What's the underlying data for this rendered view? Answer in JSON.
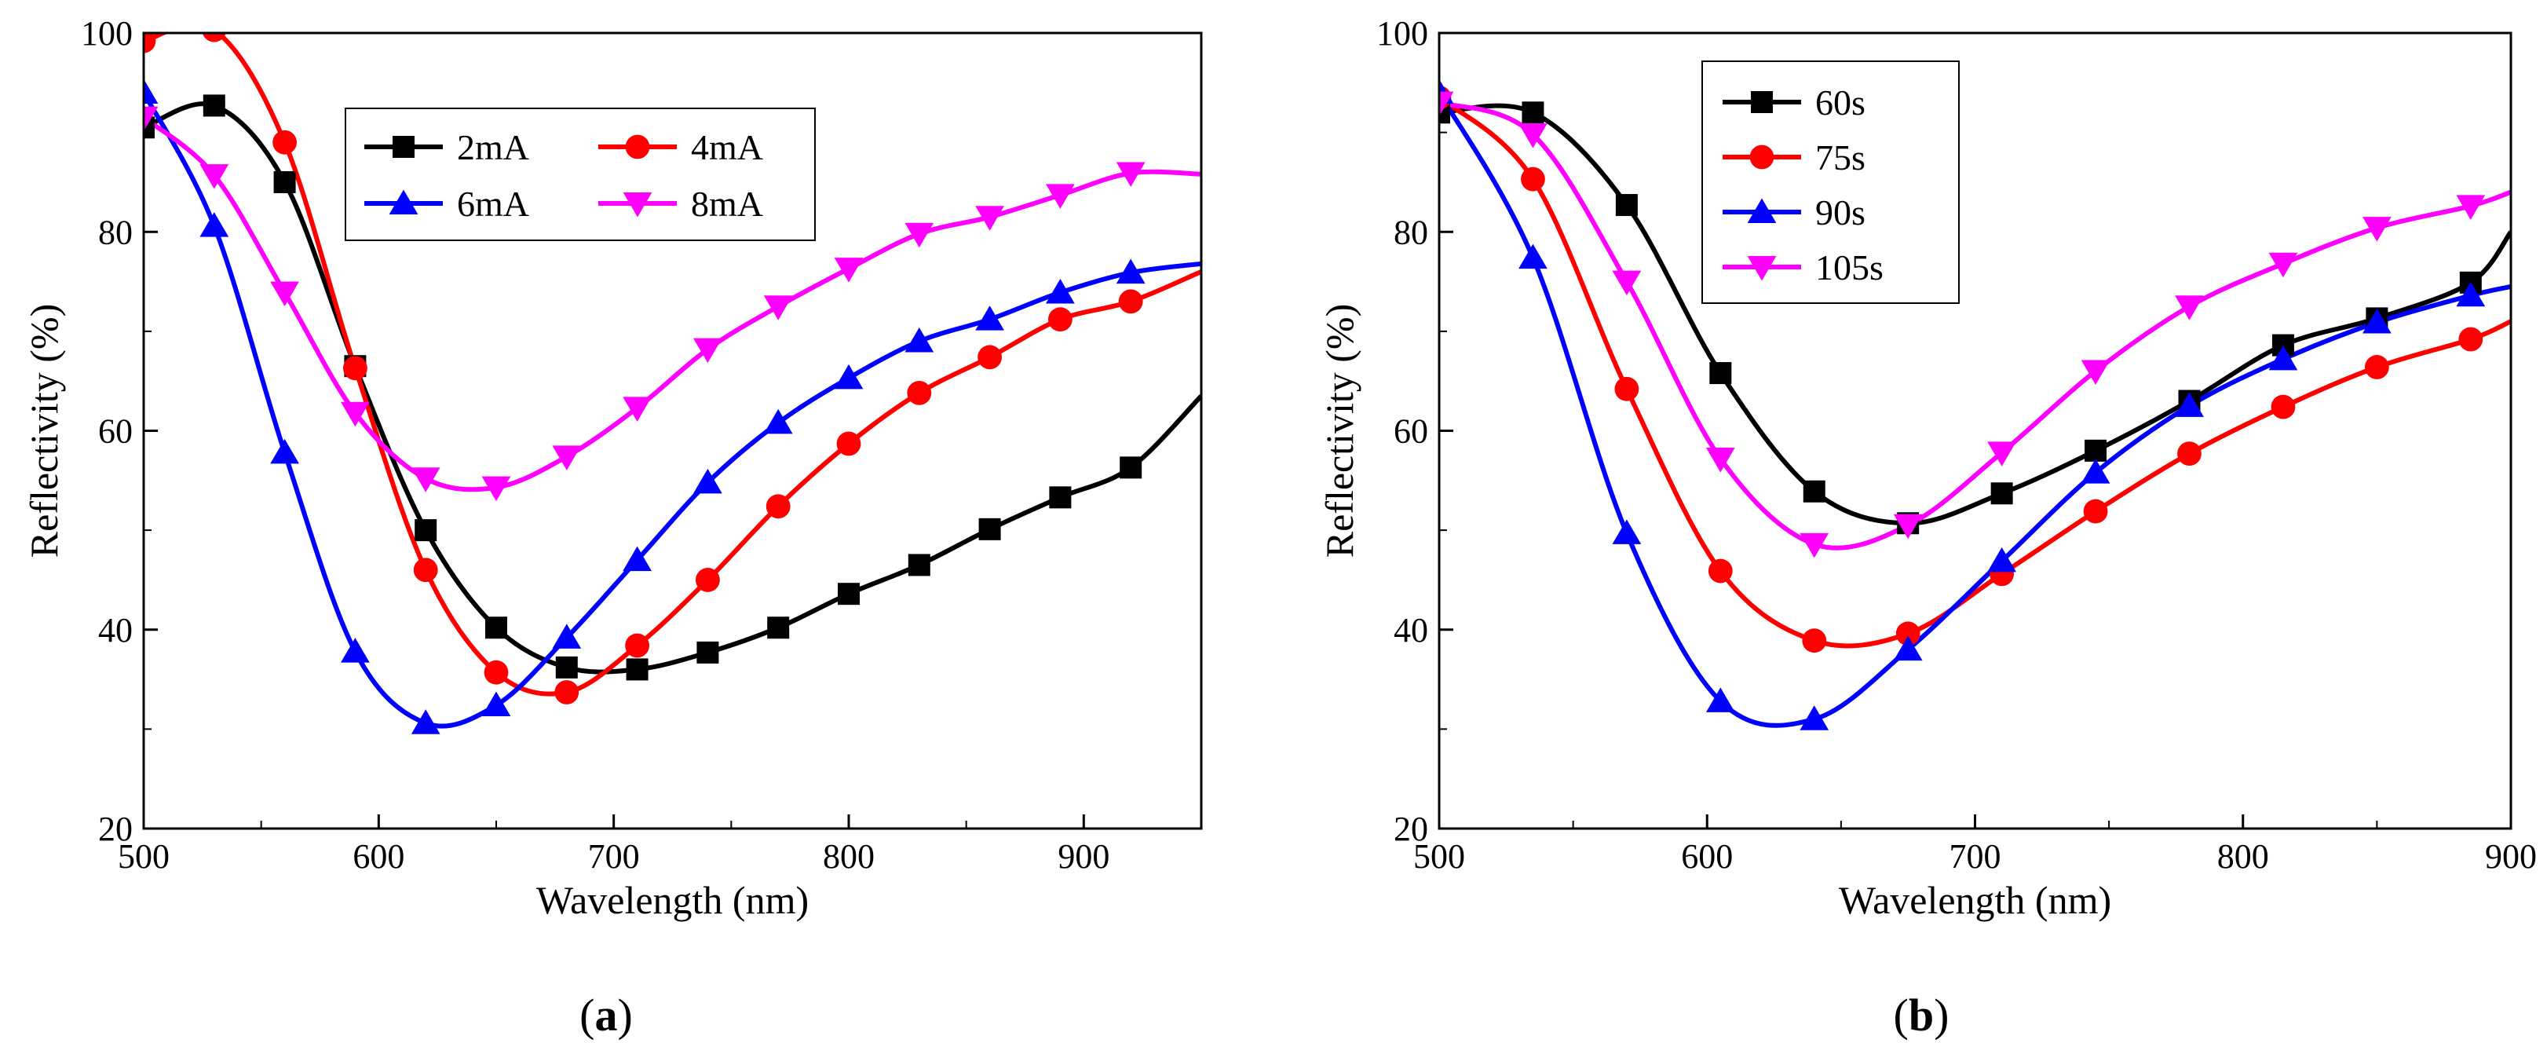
{
  "chart_data": [
    {
      "panel": "a",
      "type": "line",
      "title": "",
      "panel_label": {
        "open": "(",
        "letter": "a",
        "close": ")"
      },
      "xlabel": "Wavelength (nm)",
      "ylabel": "Reflectivity (%)",
      "xlim": [
        500,
        950
      ],
      "ylim": [
        20,
        100
      ],
      "xticks": [
        500,
        600,
        700,
        800,
        900
      ],
      "yticks": [
        20,
        40,
        60,
        80,
        100
      ],
      "grid": false,
      "legend": {
        "position": "top-center",
        "columns": 2
      },
      "series": [
        {
          "name": "2mA",
          "color": "#000000",
          "marker": "square",
          "x": [
            500,
            530,
            560,
            590,
            620,
            650,
            680,
            710,
            740,
            770,
            800,
            830,
            860,
            890,
            920,
            950
          ],
          "y": [
            90.5,
            92.7,
            85.0,
            66.5,
            50.0,
            40.2,
            36.2,
            36.0,
            37.7,
            40.2,
            43.6,
            46.5,
            50.1,
            53.3,
            56.3,
            63.5
          ]
        },
        {
          "name": "4mA",
          "color": "#ff0000",
          "marker": "circle",
          "x": [
            500,
            530,
            560,
            590,
            620,
            650,
            680,
            710,
            740,
            770,
            800,
            830,
            860,
            890,
            920,
            950
          ],
          "y": [
            99.2,
            100.3,
            89.0,
            66.3,
            46.0,
            35.7,
            33.7,
            38.4,
            45.0,
            52.4,
            58.7,
            63.8,
            67.4,
            71.2,
            73.0,
            76.0
          ]
        },
        {
          "name": "6mA",
          "color": "#0000ff",
          "marker": "triangle-up",
          "x": [
            500,
            530,
            560,
            590,
            620,
            650,
            680,
            710,
            740,
            770,
            800,
            830,
            860,
            890,
            920,
            950
          ],
          "y": [
            94.0,
            80.6,
            57.8,
            37.8,
            30.6,
            32.4,
            39.2,
            47.0,
            54.8,
            60.8,
            65.3,
            69.0,
            71.2,
            73.9,
            75.9,
            76.8
          ]
        },
        {
          "name": "8mA",
          "color": "#ff00ff",
          "marker": "triangle-down",
          "x": [
            500,
            530,
            560,
            590,
            620,
            650,
            680,
            710,
            740,
            770,
            800,
            830,
            860,
            890,
            920,
            950
          ],
          "y": [
            91.5,
            85.7,
            73.9,
            61.8,
            55.2,
            54.3,
            57.4,
            62.3,
            68.2,
            72.5,
            76.3,
            79.8,
            81.5,
            83.7,
            85.9,
            85.8
          ]
        }
      ]
    },
    {
      "panel": "b",
      "type": "line",
      "title": "",
      "panel_label": {
        "open": "(",
        "letter": "b",
        "close": ")"
      },
      "xlabel": "Wavelength (nm)",
      "ylabel": "Reflectivity (%)",
      "xlim": [
        500,
        900
      ],
      "ylim": [
        20,
        100
      ],
      "xticks": [
        500,
        600,
        700,
        800,
        900
      ],
      "yticks": [
        20,
        40,
        60,
        80,
        100
      ],
      "grid": false,
      "legend": {
        "position": "top-left",
        "columns": 1
      },
      "series": [
        {
          "name": "60s",
          "color": "#000000",
          "marker": "square",
          "x": [
            500,
            535,
            570,
            605,
            640,
            675,
            710,
            745,
            780,
            815,
            850,
            885,
            900
          ],
          "y": [
            92.0,
            92.0,
            82.7,
            65.8,
            53.9,
            50.7,
            53.7,
            58.0,
            63.0,
            68.6,
            71.3,
            74.9,
            80.0
          ]
        },
        {
          "name": "75s",
          "color": "#ff0000",
          "marker": "circle",
          "x": [
            500,
            535,
            570,
            605,
            640,
            675,
            710,
            745,
            780,
            815,
            850,
            885,
            900
          ],
          "y": [
            93.5,
            85.3,
            64.2,
            45.9,
            38.9,
            39.6,
            45.6,
            51.9,
            57.7,
            62.4,
            66.4,
            69.2,
            71.0
          ]
        },
        {
          "name": "90s",
          "color": "#0000ff",
          "marker": "triangle-up",
          "x": [
            500,
            535,
            570,
            605,
            640,
            675,
            710,
            745,
            780,
            815,
            850,
            885,
            900
          ],
          "y": [
            94.0,
            77.4,
            49.7,
            32.8,
            31.0,
            38.0,
            46.9,
            55.8,
            62.5,
            67.2,
            70.9,
            73.6,
            74.5
          ]
        },
        {
          "name": "105s",
          "color": "#ff00ff",
          "marker": "triangle-down",
          "x": [
            500,
            535,
            570,
            605,
            640,
            675,
            710,
            745,
            780,
            815,
            850,
            885,
            900
          ],
          "y": [
            93.0,
            89.8,
            75.0,
            57.2,
            48.6,
            50.5,
            57.8,
            66.0,
            72.5,
            76.8,
            80.4,
            82.6,
            84.0
          ]
        }
      ]
    }
  ]
}
